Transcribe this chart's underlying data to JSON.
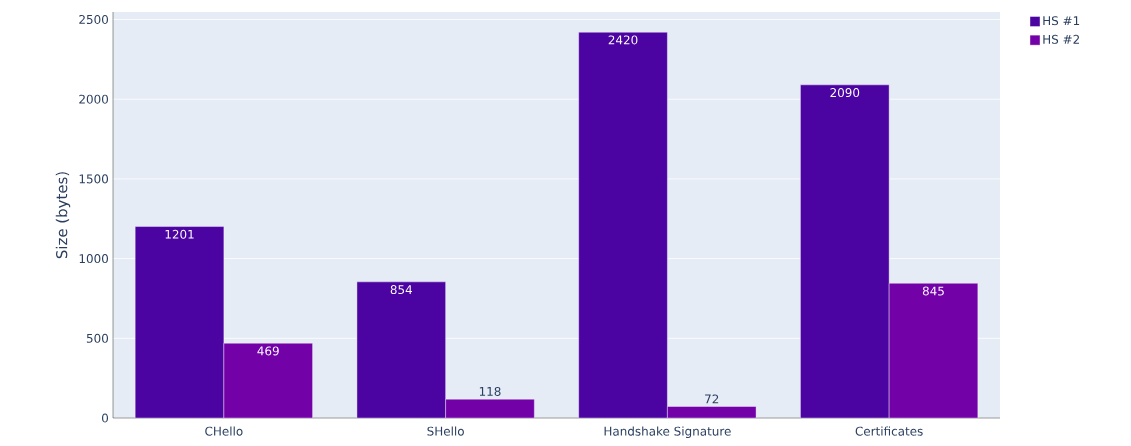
{
  "chart_data": {
    "type": "bar",
    "ylabel": "Size (bytes)",
    "categories": [
      "CHello",
      "SHello",
      "Handshake Signature",
      "Certificates"
    ],
    "series": [
      {
        "name": "HS #1",
        "color": "#4b03a1",
        "values": [
          1201,
          854,
          2420,
          2090
        ]
      },
      {
        "name": "HS #2",
        "color": "#7201a8",
        "values": [
          469,
          118,
          72,
          845
        ]
      }
    ],
    "ylim": [
      0,
      2547
    ],
    "yticks": [
      0,
      500,
      1000,
      1500,
      2000,
      2500
    ],
    "grid": "y",
    "legend": "top right",
    "data_labels": true
  }
}
